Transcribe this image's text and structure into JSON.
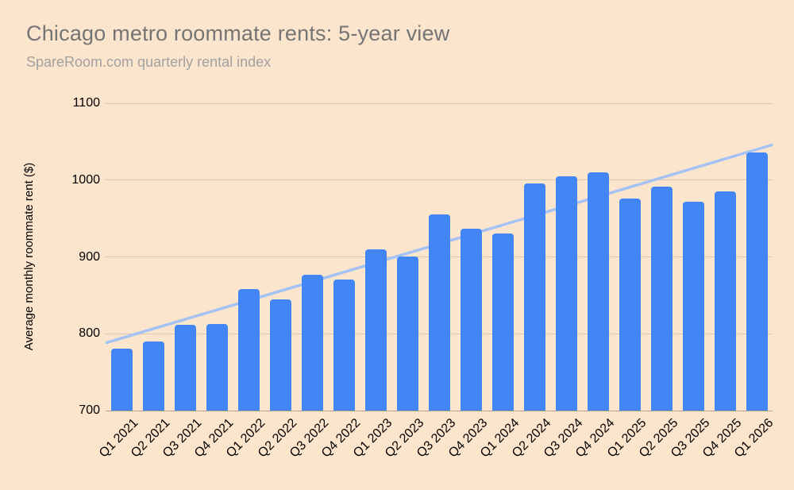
{
  "chart_data": {
    "type": "bar",
    "title": "Chicago metro roommate rents: 5-year view",
    "subtitle": "SpareRoom.com quarterly rental index",
    "xlabel": "",
    "ylabel": "Average monthly roommate rent ($)",
    "ylim": [
      700,
      1100
    ],
    "yticks": [
      700,
      800,
      900,
      1000,
      1100
    ],
    "grid": true,
    "legend": "none",
    "categories": [
      "Q1 2021",
      "Q2 2021",
      "Q3 2021",
      "Q4 2021",
      "Q1 2022",
      "Q2 2022",
      "Q3 2022",
      "Q4 2022",
      "Q1 2023",
      "Q2 2023",
      "Q3 2023",
      "Q4 2023",
      "Q1 2024",
      "Q2 2024",
      "Q3 2024",
      "Q4 2024",
      "Q1 2025",
      "Q2 2025",
      "Q3 2025",
      "Q4 2025",
      "Q1 2026"
    ],
    "values": [
      781,
      790,
      812,
      813,
      858,
      845,
      877,
      871,
      910,
      901,
      955,
      937,
      930,
      996,
      1005,
      1010,
      976,
      991,
      972,
      985,
      1036
    ],
    "trendline": {
      "start_value": 788,
      "end_value": 1046
    },
    "colors": {
      "background": "#fce5cd",
      "bar": "#4285f4",
      "trendline": "#a4c2f4",
      "gridline": "#d9c6ae",
      "axis_line": "#b7a48c",
      "title": "#757575",
      "subtitle": "#a1a1a1",
      "tick_label": "#000000"
    }
  }
}
